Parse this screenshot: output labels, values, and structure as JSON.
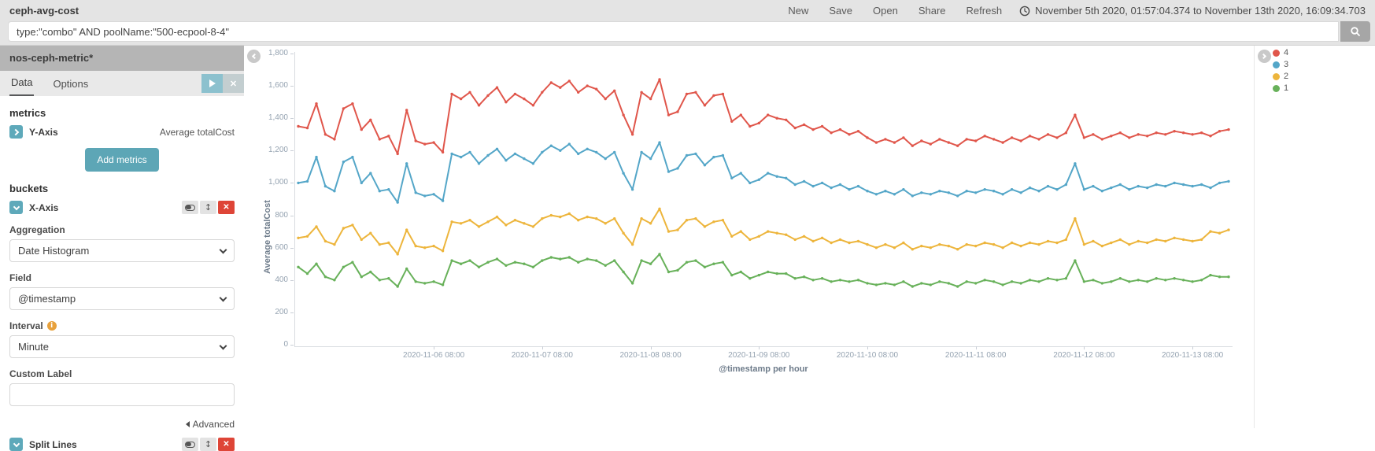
{
  "top_bar": {
    "title": "ceph-avg-cost",
    "nav": [
      "New",
      "Save",
      "Open",
      "Share",
      "Refresh"
    ],
    "time_range": "November 5th 2020, 01:57:04.374 to November 13th 2020, 16:09:34.703"
  },
  "query_bar": {
    "query": "type:\"combo\" AND poolName:\"500-ecpool-8-4\""
  },
  "sidebar": {
    "index_pattern": "nos-ceph-metric*",
    "tabs": {
      "data": "Data",
      "options": "Options"
    },
    "metrics_heading": "metrics",
    "y_axis": {
      "label": "Y-Axis",
      "value": "Average totalCost"
    },
    "add_metrics_label": "Add metrics",
    "buckets_heading": "buckets",
    "x_axis": {
      "label": "X-Axis"
    },
    "aggregation": {
      "label": "Aggregation",
      "value": "Date Histogram"
    },
    "field": {
      "label": "Field",
      "value": "@timestamp"
    },
    "interval": {
      "label": "Interval",
      "value": "Minute"
    },
    "custom_label": {
      "label": "Custom Label",
      "value": ""
    },
    "advanced_label": "Advanced",
    "split_lines": {
      "label": "Split Lines"
    }
  },
  "icons": {
    "clock-icon": "clock outline",
    "search-icon": "magnifier",
    "play-icon": "white right triangle",
    "close-icon": "x",
    "chevron-right-icon": "white chevron",
    "chevron-down-icon": "white chevron",
    "toggle-icon": "enable/disable pill",
    "move-icon": "up-down arrows",
    "delete-icon": "red x",
    "info-icon": "orange i circle",
    "collapse-left-icon": "gray circle chevron",
    "collapse-right-icon": "gray circle chevron",
    "move_glyph": "↕",
    "close_glyph": "✕"
  },
  "colors": {
    "accent_teal": "#5da6b6",
    "play_teal": "#8cc1ce",
    "delete_red": "#de4537",
    "topbar_gray": "#e4e4e4",
    "sidebar_header_gray": "#b5b5b5"
  },
  "chart_data": {
    "type": "line",
    "title": "",
    "ylabel": "Average totalCost",
    "xlabel": "@timestamp per hour",
    "ylim": [
      0,
      1800
    ],
    "y_ticks": [
      0,
      200,
      400,
      600,
      800,
      1000,
      1200,
      1400,
      1600,
      1800
    ],
    "grid": false,
    "legend_position": "right",
    "x_start": "2020-11-05 02:00",
    "x_step_hours": 2,
    "x_tick_labels": [
      "2020-11-06 08:00",
      "2020-11-07 08:00",
      "2020-11-08 08:00",
      "2020-11-09 08:00",
      "2020-11-10 08:00",
      "2020-11-11 08:00",
      "2020-11-12 08:00",
      "2020-11-13 08:00"
    ],
    "x_tick_indices": [
      15,
      27,
      39,
      51,
      63,
      75,
      87,
      99
    ],
    "series": [
      {
        "name": "4",
        "color": "#e0564b",
        "values": [
          1350,
          1340,
          1490,
          1300,
          1270,
          1460,
          1490,
          1330,
          1390,
          1270,
          1290,
          1180,
          1450,
          1260,
          1240,
          1250,
          1190,
          1550,
          1520,
          1560,
          1480,
          1540,
          1590,
          1500,
          1550,
          1520,
          1480,
          1560,
          1620,
          1590,
          1630,
          1560,
          1600,
          1580,
          1520,
          1570,
          1420,
          1300,
          1560,
          1520,
          1640,
          1420,
          1440,
          1550,
          1560,
          1480,
          1540,
          1550,
          1380,
          1420,
          1350,
          1370,
          1420,
          1400,
          1390,
          1340,
          1360,
          1330,
          1350,
          1310,
          1330,
          1300,
          1320,
          1280,
          1250,
          1270,
          1250,
          1280,
          1230,
          1260,
          1240,
          1270,
          1250,
          1230,
          1270,
          1260,
          1290,
          1270,
          1250,
          1280,
          1260,
          1290,
          1270,
          1300,
          1280,
          1310,
          1420,
          1280,
          1300,
          1270,
          1290,
          1310,
          1280,
          1300,
          1290,
          1310,
          1300,
          1320,
          1310,
          1300,
          1310,
          1290,
          1320,
          1330
        ]
      },
      {
        "name": "3",
        "color": "#54a6c8",
        "values": [
          1000,
          1010,
          1160,
          980,
          950,
          1130,
          1160,
          1000,
          1060,
          950,
          960,
          880,
          1120,
          940,
          920,
          930,
          890,
          1180,
          1160,
          1190,
          1120,
          1170,
          1210,
          1140,
          1180,
          1150,
          1120,
          1190,
          1230,
          1200,
          1240,
          1180,
          1210,
          1190,
          1150,
          1190,
          1060,
          960,
          1190,
          1150,
          1250,
          1070,
          1090,
          1170,
          1180,
          1110,
          1160,
          1170,
          1030,
          1060,
          1000,
          1020,
          1060,
          1040,
          1030,
          990,
          1010,
          980,
          1000,
          970,
          990,
          960,
          980,
          950,
          930,
          950,
          930,
          960,
          920,
          940,
          930,
          950,
          940,
          920,
          950,
          940,
          960,
          950,
          930,
          960,
          940,
          970,
          950,
          980,
          960,
          990,
          1120,
          960,
          980,
          950,
          970,
          990,
          960,
          980,
          970,
          990,
          980,
          1000,
          990,
          980,
          990,
          970,
          1000,
          1010
        ]
      },
      {
        "name": "2",
        "color": "#edb53c",
        "values": [
          660,
          670,
          730,
          640,
          620,
          720,
          740,
          650,
          690,
          620,
          630,
          560,
          710,
          610,
          600,
          610,
          580,
          760,
          750,
          770,
          730,
          760,
          790,
          740,
          770,
          750,
          730,
          780,
          800,
          790,
          810,
          770,
          790,
          780,
          750,
          780,
          690,
          620,
          780,
          750,
          840,
          700,
          710,
          770,
          780,
          730,
          760,
          770,
          670,
          700,
          650,
          670,
          700,
          690,
          680,
          650,
          670,
          640,
          660,
          630,
          650,
          630,
          640,
          620,
          600,
          620,
          600,
          630,
          590,
          610,
          600,
          620,
          610,
          590,
          620,
          610,
          630,
          620,
          600,
          630,
          610,
          630,
          620,
          640,
          630,
          650,
          780,
          620,
          640,
          610,
          630,
          650,
          620,
          640,
          630,
          650,
          640,
          660,
          650,
          640,
          650,
          700,
          690,
          710
        ]
      },
      {
        "name": "1",
        "color": "#68b15a",
        "values": [
          480,
          440,
          500,
          420,
          400,
          480,
          510,
          420,
          450,
          400,
          410,
          360,
          470,
          390,
          380,
          390,
          370,
          520,
          500,
          520,
          480,
          510,
          530,
          490,
          510,
          500,
          480,
          520,
          540,
          530,
          540,
          510,
          530,
          520,
          490,
          520,
          450,
          380,
          520,
          500,
          560,
          450,
          460,
          510,
          520,
          480,
          500,
          510,
          430,
          450,
          410,
          430,
          450,
          440,
          440,
          410,
          420,
          400,
          410,
          390,
          400,
          390,
          400,
          380,
          370,
          380,
          370,
          390,
          360,
          380,
          370,
          390,
          380,
          360,
          390,
          380,
          400,
          390,
          370,
          390,
          380,
          400,
          390,
          410,
          400,
          410,
          520,
          390,
          400,
          380,
          390,
          410,
          390,
          400,
          390,
          410,
          400,
          410,
          400,
          390,
          400,
          430,
          420,
          420
        ]
      }
    ]
  }
}
